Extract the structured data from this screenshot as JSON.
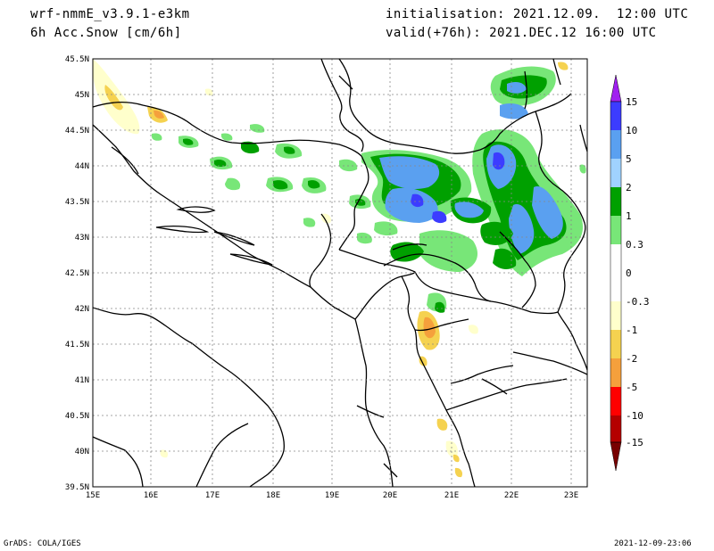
{
  "header": {
    "model": "wrf-nmmE_v3.9.1-e3km",
    "variable": "6h Acc.Snow [cm/6h]",
    "init": "initialisation: 2021.12.09.  12:00 UTC",
    "valid": "valid(+76h): 2021.DEC.12 16:00 UTC"
  },
  "footer": {
    "left": "GrADS: COLA/IGES",
    "right": "2021-12-09-23:06"
  },
  "axes": {
    "lat_labels": [
      "45.5N",
      "45N",
      "44.5N",
      "44N",
      "43.5N",
      "43N",
      "42.5N",
      "42N",
      "41.5N",
      "41N",
      "40.5N",
      "40N",
      "39.5N"
    ],
    "lon_labels": [
      "15E",
      "16E",
      "17E",
      "18E",
      "19E",
      "20E",
      "21E",
      "22E",
      "23E"
    ]
  },
  "legend": {
    "labels": [
      "15",
      "10",
      "5",
      "2",
      "1",
      "0.3",
      "0",
      "-0.3",
      "-1",
      "-2",
      "-5",
      "-10",
      "-15"
    ],
    "colors": [
      "#a020f0",
      "#3c3cff",
      "#5aa0f0",
      "#a0d2ff",
      "#00a000",
      "#78e678",
      "#ffffff",
      "#ffffcc",
      "#f5d250",
      "#f5a03c",
      "#ff3c3c",
      "#c80000",
      "#8c0000",
      "#780000"
    ]
  },
  "map": {
    "land_color": "#ffffff",
    "border_color": "#000000",
    "grid": "dotted"
  }
}
